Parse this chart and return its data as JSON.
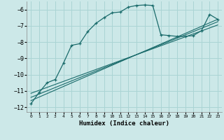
{
  "xlabel": "Humidex (Indice chaleur)",
  "bg_color": "#cce8e8",
  "grid_color": "#aad4d4",
  "line_color": "#1a6b6b",
  "xlim": [
    -0.5,
    23.5
  ],
  "ylim": [
    -12.3,
    -5.5
  ],
  "xticks": [
    0,
    1,
    2,
    3,
    4,
    5,
    6,
    7,
    8,
    9,
    10,
    11,
    12,
    13,
    14,
    15,
    16,
    17,
    18,
    19,
    20,
    21,
    22,
    23
  ],
  "yticks": [
    -12,
    -11,
    -10,
    -9,
    -8,
    -7,
    -6
  ],
  "curve_x": [
    0,
    1,
    2,
    3,
    4,
    5,
    6,
    7,
    8,
    9,
    10,
    11,
    12,
    13,
    14,
    15,
    16,
    17,
    18,
    19,
    20,
    21,
    22,
    23
  ],
  "curve_y": [
    -11.8,
    -11.1,
    -10.5,
    -10.3,
    -9.3,
    -8.2,
    -8.1,
    -7.35,
    -6.85,
    -6.5,
    -6.2,
    -6.15,
    -5.85,
    -5.75,
    -5.72,
    -5.75,
    -7.55,
    -7.6,
    -7.65,
    -7.65,
    -7.6,
    -7.3,
    -6.3,
    -6.6
  ],
  "line1_x": [
    0,
    23
  ],
  "line1_y": [
    -11.6,
    -6.6
  ],
  "line2_x": [
    0,
    23
  ],
  "line2_y": [
    -11.4,
    -6.75
  ],
  "line3_x": [
    0,
    23
  ],
  "line3_y": [
    -11.15,
    -6.95
  ]
}
